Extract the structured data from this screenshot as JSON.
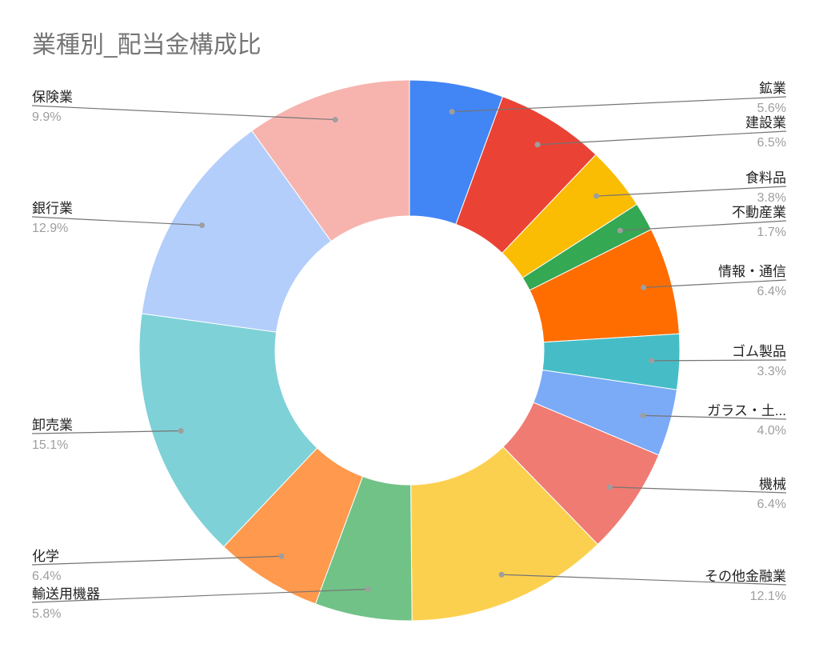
{
  "chart_data": {
    "type": "pie",
    "style": "donut",
    "title": "業種別_配当金構成比",
    "slices": [
      {
        "label": "鉱業",
        "pct_label": "5.6%",
        "value": 5.6,
        "color": "#4285F4"
      },
      {
        "label": "建設業",
        "pct_label": "6.5%",
        "value": 6.5,
        "color": "#EA4335"
      },
      {
        "label": "食料品",
        "pct_label": "3.8%",
        "value": 3.8,
        "color": "#FBBC04"
      },
      {
        "label": "不動産業",
        "pct_label": "1.7%",
        "value": 1.7,
        "color": "#34A853"
      },
      {
        "label": "情報・通信",
        "pct_label": "6.4%",
        "value": 6.4,
        "color": "#FF6D01"
      },
      {
        "label": "ゴム製品",
        "pct_label": "3.3%",
        "value": 3.3,
        "color": "#46BDC6"
      },
      {
        "label": "ガラス・土...",
        "pct_label": "4.0%",
        "value": 4.0,
        "color": "#7BAAF7"
      },
      {
        "label": "機械",
        "pct_label": "6.4%",
        "value": 6.4,
        "color": "#F07B72"
      },
      {
        "label": "その他金融業",
        "pct_label": "12.1%",
        "value": 12.1,
        "color": "#FCD04F"
      },
      {
        "label": "輸送用機器",
        "pct_label": "5.8%",
        "value": 5.8,
        "color": "#71C287"
      },
      {
        "label": "化学",
        "pct_label": "6.4%",
        "value": 6.4,
        "color": "#FF994D"
      },
      {
        "label": "卸売業",
        "pct_label": "15.1%",
        "value": 15.1,
        "color": "#7ED1D7"
      },
      {
        "label": "銀行業",
        "pct_label": "12.9%",
        "value": 12.9,
        "color": "#B3CEFB"
      },
      {
        "label": "保険業",
        "pct_label": "9.9%",
        "value": 9.9,
        "color": "#F7B4AE"
      }
    ]
  }
}
